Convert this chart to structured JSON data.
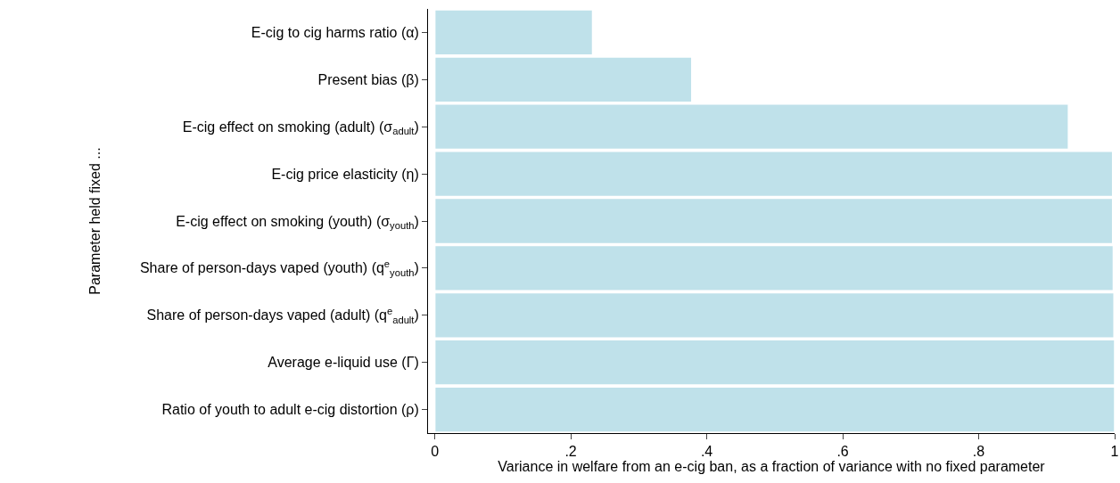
{
  "chart_data": {
    "type": "bar",
    "orientation": "horizontal",
    "categories": [
      "E-cig to cig harms ratio (α)",
      "Present bias (β)",
      "E-cig effect on smoking (adult) (σ$_{adult}$)",
      "E-cig price elasticity (η)",
      "E-cig effect on smoking (youth) (σ$_{youth}$)",
      "Share of person-days vaped (youth) (q$^{e}$$_{youth}$)",
      "Share of person-days vaped (adult) (q$^{e}$$_{adult}$)",
      "Average e-liquid use (Γ)",
      "Ratio of youth to adult e-cig distortion (ρ)"
    ],
    "values": [
      0.232,
      0.378,
      0.932,
      0.997,
      0.997,
      0.998,
      0.999,
      1.0,
      1.0
    ],
    "color": "#bfe1ea",
    "xlabel": "Variance in welfare from an e-cig ban, as a fraction of variance with no fixed parameter",
    "ylabel": "Parameter held fixed ...",
    "xlim": [
      -0.01,
      1.0
    ],
    "xticks": [
      0,
      {
        "value": 0.2,
        "label": ".2"
      },
      {
        "value": 0.4,
        "label": ".4"
      },
      {
        "value": 0.6,
        "label": ".6"
      },
      {
        "value": 0.8,
        "label": ".8"
      },
      1
    ],
    "grid": false,
    "legend": false
  }
}
